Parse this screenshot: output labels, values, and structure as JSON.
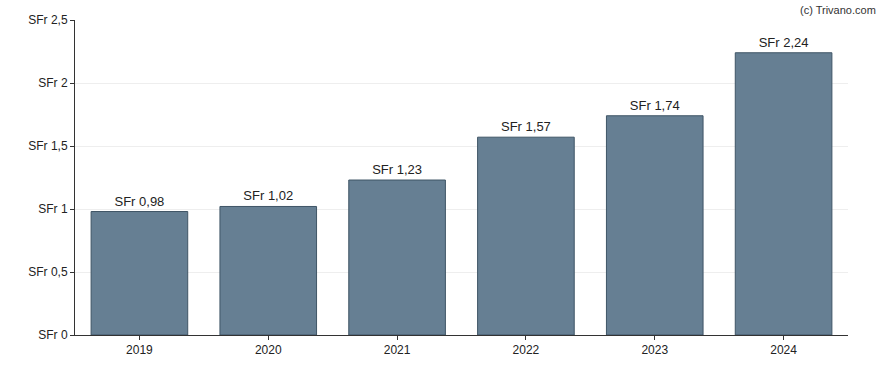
{
  "chart_data": {
    "type": "bar",
    "categories": [
      "2019",
      "2020",
      "2021",
      "2022",
      "2023",
      "2024"
    ],
    "values": [
      0.98,
      1.02,
      1.23,
      1.57,
      1.74,
      2.24
    ],
    "value_labels": [
      "SFr 0,98",
      "SFr 1,02",
      "SFr 1,23",
      "SFr 1,57",
      "SFr 1,74",
      "SFr 2,24"
    ],
    "data_labels": true,
    "color": "#667f93",
    "ylim": [
      0,
      2.5
    ],
    "yticks": [
      {
        "value": 0,
        "label": "SFr 0"
      },
      {
        "value": 0.5,
        "label": "SFr 0,5"
      },
      {
        "value": 1,
        "label": "SFr 1"
      },
      {
        "value": 1.5,
        "label": "SFr 1,5"
      },
      {
        "value": 2,
        "label": "SFr 2"
      },
      {
        "value": 2.5,
        "label": "SFr 2,5"
      }
    ],
    "grid": true,
    "annotations": [
      {
        "text": "(c) Trivano.com"
      }
    ]
  }
}
